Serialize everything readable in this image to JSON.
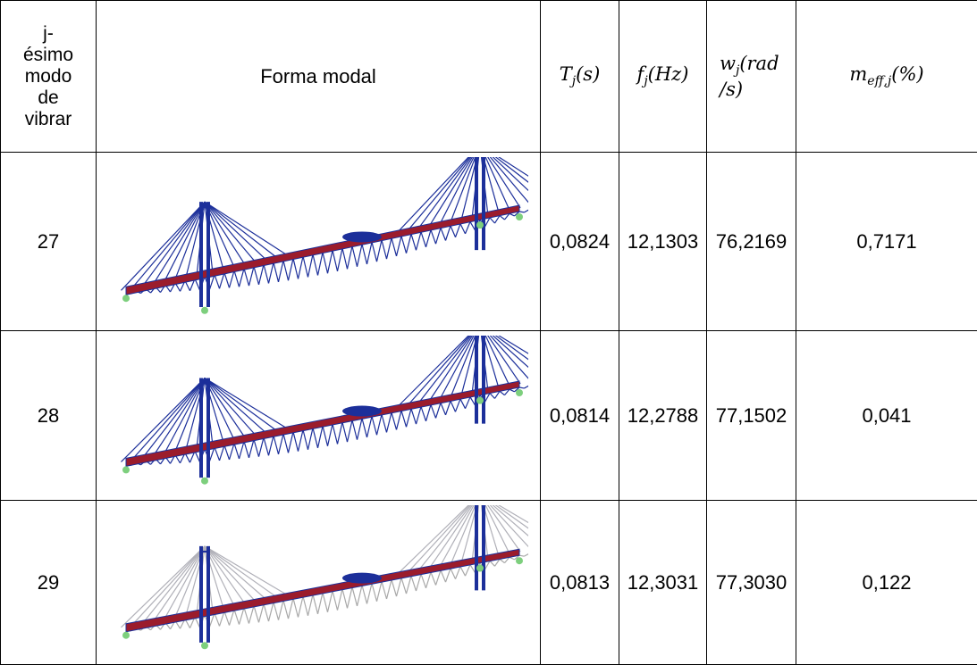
{
  "table": {
    "header": {
      "mode": "j-ésimo modo de vibrar",
      "shape": "Forma modal",
      "period": {
        "symbol": "T",
        "sub": "j",
        "unit": "(s)"
      },
      "frequency": {
        "symbol": "f",
        "sub": "j",
        "unit": "(Hz)"
      },
      "angular": {
        "symbol": "w",
        "sub": "j",
        "unit": "(rad /s)"
      },
      "mass": {
        "symbol": "m",
        "sub": "eff,j",
        "unit": "(%)"
      }
    },
    "rows": [
      [
        "27",
        "0,0824",
        "12,1303",
        "76,2169",
        "0,7171"
      ],
      [
        "28",
        "0,0814",
        "12,2788",
        "77,1502",
        "0,041"
      ],
      [
        "29",
        "0,0813",
        "12,3031",
        "77,3030",
        "0,122"
      ]
    ]
  }
}
